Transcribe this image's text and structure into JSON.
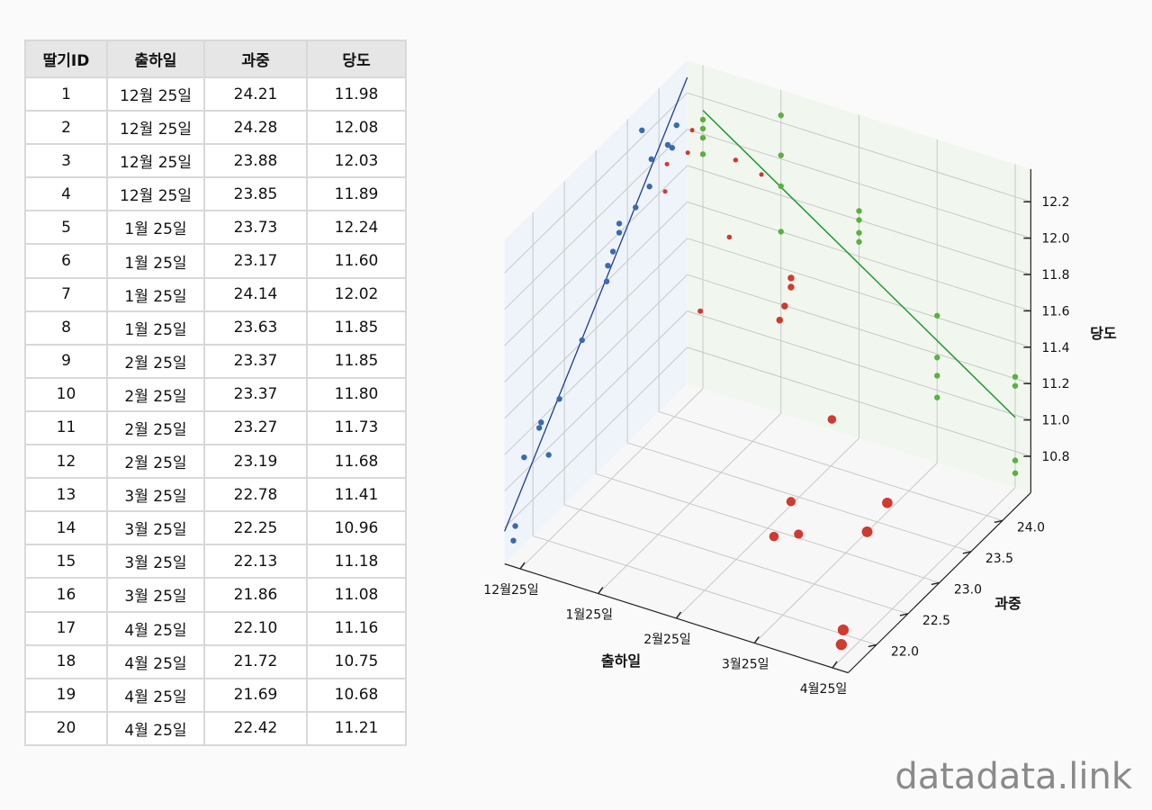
{
  "table": {
    "headers": [
      "딸기ID",
      "출하일",
      "과중",
      "당도"
    ],
    "rows": [
      [
        "1",
        "12월 25일",
        "24.21",
        "11.98"
      ],
      [
        "2",
        "12월 25일",
        "24.28",
        "12.08"
      ],
      [
        "3",
        "12월 25일",
        "23.88",
        "12.03"
      ],
      [
        "4",
        "12월 25일",
        "23.85",
        "11.89"
      ],
      [
        "5",
        "1월 25일",
        "23.73",
        "12.24"
      ],
      [
        "6",
        "1월 25일",
        "23.17",
        "11.60"
      ],
      [
        "7",
        "1월 25일",
        "24.14",
        "12.02"
      ],
      [
        "8",
        "1월 25일",
        "23.63",
        "11.85"
      ],
      [
        "9",
        "2월 25일",
        "23.37",
        "11.85"
      ],
      [
        "10",
        "2월 25일",
        "23.37",
        "11.80"
      ],
      [
        "11",
        "2월 25일",
        "23.27",
        "11.73"
      ],
      [
        "12",
        "2월 25일",
        "23.19",
        "11.68"
      ],
      [
        "13",
        "3월 25일",
        "22.78",
        "11.41"
      ],
      [
        "14",
        "3월 25일",
        "22.25",
        "10.96"
      ],
      [
        "15",
        "3월 25일",
        "22.13",
        "11.18"
      ],
      [
        "16",
        "3월 25일",
        "21.86",
        "11.08"
      ],
      [
        "17",
        "4월 25일",
        "22.10",
        "11.16"
      ],
      [
        "18",
        "4월 25일",
        "21.72",
        "10.75"
      ],
      [
        "19",
        "4월 25일",
        "21.69",
        "10.68"
      ],
      [
        "20",
        "4월 25일",
        "22.42",
        "11.21"
      ]
    ]
  },
  "chart_data": {
    "type": "scatter3d",
    "xlabel": "출하일",
    "ylabel": "과중",
    "zlabel": "당도",
    "x_ticks": [
      "12월25일",
      "1월25일",
      "2월25일",
      "3월25일",
      "4월25일"
    ],
    "y_ticks": [
      "22.0",
      "22.5",
      "23.0",
      "23.5",
      "24.0"
    ],
    "z_ticks": [
      "10.8",
      "11.0",
      "11.2",
      "11.4",
      "11.6",
      "11.8",
      "12.0",
      "12.2"
    ],
    "xlim": [
      -0.2,
      4.2
    ],
    "ylim": [
      21.55,
      24.45
    ],
    "zlim": [
      10.6,
      12.38
    ],
    "x": [
      0,
      0,
      0,
      0,
      1,
      1,
      1,
      1,
      2,
      2,
      2,
      2,
      3,
      3,
      3,
      3,
      4,
      4,
      4,
      4
    ],
    "y": [
      24.21,
      24.28,
      23.88,
      23.85,
      23.73,
      23.17,
      24.14,
      23.63,
      23.37,
      23.37,
      23.27,
      23.19,
      22.78,
      22.25,
      22.13,
      21.86,
      22.1,
      21.72,
      21.69,
      22.42
    ],
    "z": [
      11.98,
      12.08,
      12.03,
      11.89,
      12.24,
      11.6,
      12.02,
      11.85,
      11.85,
      11.8,
      11.73,
      11.68,
      11.41,
      10.96,
      11.18,
      11.08,
      11.16,
      10.75,
      10.68,
      11.21
    ],
    "colors": {
      "points": "#d03a2f",
      "weight_projection": "#3a6ab0",
      "date_projection": "#5cb040",
      "weight_fit": "#1f3f8f",
      "date_fit": "#1a9a2a"
    }
  },
  "watermark": "datadata.link"
}
